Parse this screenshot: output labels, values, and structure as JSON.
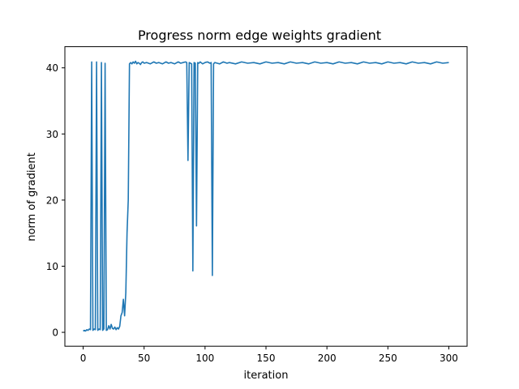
{
  "chart_data": {
    "type": "line",
    "title": "Progress norm edge weights gradient",
    "xlabel": "iteration",
    "ylabel": "norm of gradient",
    "xlim": [
      -15,
      315
    ],
    "ylim": [
      -2.1,
      43.2
    ],
    "xticks": [
      0,
      50,
      100,
      150,
      200,
      250,
      300
    ],
    "yticks": [
      0,
      10,
      20,
      30,
      40
    ],
    "grid": false,
    "legend": "none",
    "series": [
      {
        "color": "#1f77b4",
        "x": [
          0,
          1,
          2,
          3,
          4,
          5,
          6,
          7,
          8,
          9,
          10,
          11,
          12,
          13,
          14,
          15,
          16,
          17,
          18,
          19,
          20,
          21,
          22,
          23,
          24,
          25,
          26,
          27,
          28,
          29,
          30,
          31,
          32,
          33,
          34,
          35,
          36,
          37,
          38,
          39,
          40,
          41,
          42,
          43,
          44,
          45,
          46,
          47,
          48,
          49,
          50,
          52,
          55,
          58,
          60,
          62,
          65,
          68,
          70,
          72,
          75,
          78,
          80,
          82,
          84,
          85,
          86,
          87,
          88,
          89,
          90,
          91,
          92,
          93,
          94,
          95,
          96,
          98,
          100,
          102,
          104,
          105,
          106,
          107,
          108,
          110,
          112,
          115,
          118,
          120,
          125,
          130,
          135,
          140,
          145,
          150,
          155,
          160,
          165,
          170,
          175,
          180,
          185,
          190,
          195,
          200,
          205,
          210,
          215,
          220,
          225,
          230,
          235,
          240,
          245,
          250,
          255,
          260,
          265,
          270,
          275,
          280,
          285,
          290,
          295,
          300
        ],
        "y": [
          0.2,
          0.3,
          0.2,
          0.4,
          0.3,
          0.5,
          0.4,
          40.9,
          0.3,
          0.5,
          0.4,
          40.9,
          0.3,
          0.5,
          0.4,
          40.8,
          0.3,
          0.5,
          40.7,
          0.3,
          0.4,
          1.0,
          0.5,
          1.2,
          0.6,
          0.5,
          0.8,
          0.4,
          0.7,
          0.5,
          0.9,
          2.5,
          3.0,
          5.0,
          2.5,
          6.0,
          15.0,
          20.0,
          40.6,
          40.8,
          40.6,
          40.9,
          40.7,
          41.0,
          40.6,
          40.8,
          40.7,
          40.5,
          40.8,
          40.9,
          40.7,
          40.8,
          40.6,
          40.9,
          40.7,
          40.8,
          40.6,
          40.9,
          40.7,
          40.8,
          40.6,
          40.9,
          40.7,
          40.8,
          40.9,
          40.8,
          26.0,
          40.8,
          40.7,
          40.6,
          9.3,
          40.8,
          40.7,
          16.1,
          40.8,
          40.7,
          40.9,
          40.6,
          40.8,
          40.9,
          40.7,
          40.8,
          8.6,
          40.6,
          40.8,
          40.7,
          40.6,
          40.9,
          40.7,
          40.8,
          40.6,
          40.9,
          40.7,
          40.8,
          40.6,
          40.9,
          40.7,
          40.8,
          40.6,
          40.9,
          40.7,
          40.8,
          40.6,
          40.9,
          40.7,
          40.8,
          40.6,
          40.9,
          40.7,
          40.8,
          40.6,
          40.9,
          40.7,
          40.8,
          40.6,
          40.9,
          40.7,
          40.8,
          40.6,
          40.9,
          40.7,
          40.8,
          40.6,
          40.9,
          40.7,
          40.8
        ]
      }
    ]
  }
}
